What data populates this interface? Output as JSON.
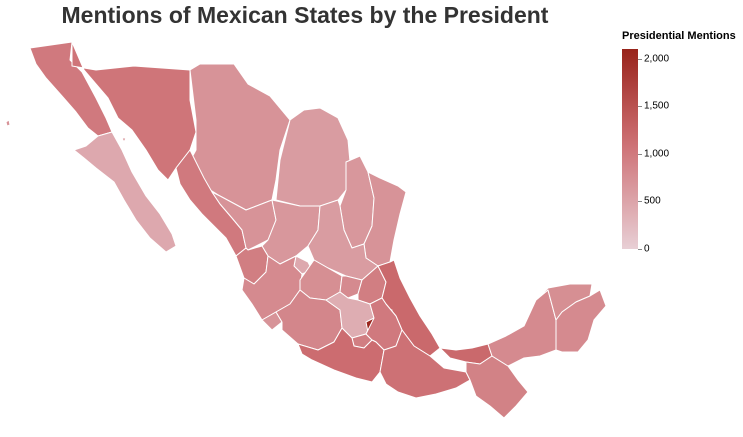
{
  "title": "Mentions of Mexican States by the President",
  "legend": {
    "title": "Presidential Mentions",
    "ticks": [
      "0",
      "500",
      "1,000",
      "1,500",
      "2,000"
    ],
    "tick_values": [
      0,
      500,
      1000,
      1500,
      2000
    ],
    "max_value": 2100,
    "color_low": "#e8cfd5",
    "color_high": "#98231a"
  },
  "map_data": {
    "type": "choropleth",
    "regions": [
      {
        "name": "Baja California",
        "value": 1000
      },
      {
        "name": "Baja California Sur",
        "value": 450
      },
      {
        "name": "Sonora",
        "value": 1050
      },
      {
        "name": "Chihuahua",
        "value": 700
      },
      {
        "name": "Coahuila",
        "value": 600
      },
      {
        "name": "Nuevo León",
        "value": 650
      },
      {
        "name": "Tamaulipas",
        "value": 700
      },
      {
        "name": "Sinaloa",
        "value": 1000
      },
      {
        "name": "Durango",
        "value": 700
      },
      {
        "name": "Zacatecas",
        "value": 650
      },
      {
        "name": "San Luis Potosí",
        "value": 600
      },
      {
        "name": "Nayarit",
        "value": 950
      },
      {
        "name": "Aguascalientes",
        "value": 450
      },
      {
        "name": "Jalisco",
        "value": 800
      },
      {
        "name": "Guanajuato",
        "value": 750
      },
      {
        "name": "Querétaro",
        "value": 800
      },
      {
        "name": "Hidalgo",
        "value": 950
      },
      {
        "name": "Veracruz",
        "value": 1200
      },
      {
        "name": "Colima",
        "value": 700
      },
      {
        "name": "Michoacán",
        "value": 850
      },
      {
        "name": "México",
        "value": 400
      },
      {
        "name": "Ciudad de México",
        "value": 2050
      },
      {
        "name": "Tlaxcala",
        "value": 900
      },
      {
        "name": "Morelos",
        "value": 950
      },
      {
        "name": "Puebla",
        "value": 1000
      },
      {
        "name": "Guerrero",
        "value": 1150
      },
      {
        "name": "Oaxaca",
        "value": 1100
      },
      {
        "name": "Tabasco",
        "value": 1200
      },
      {
        "name": "Chiapas",
        "value": 900
      },
      {
        "name": "Campeche",
        "value": 800
      },
      {
        "name": "Yucatán",
        "value": 750
      },
      {
        "name": "Quintana Roo",
        "value": 800
      }
    ]
  }
}
